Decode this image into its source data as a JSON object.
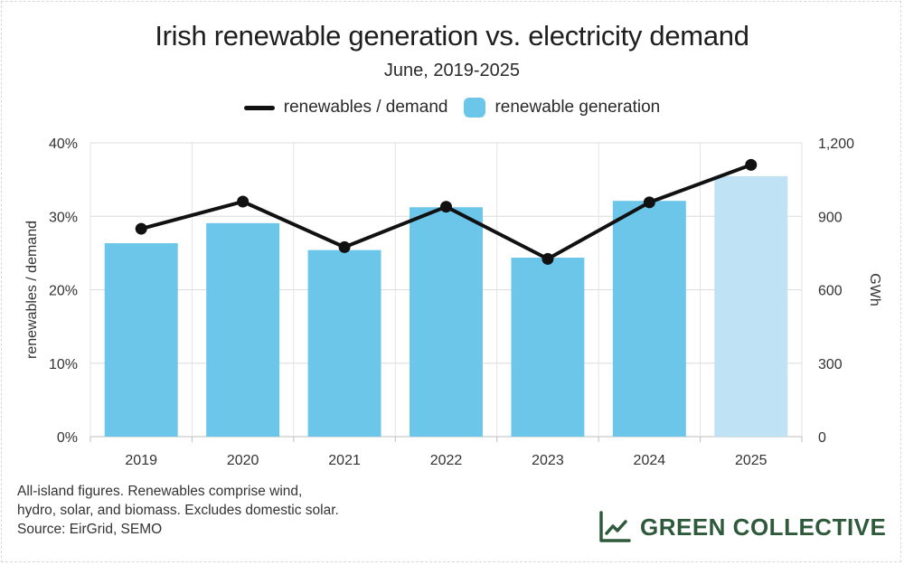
{
  "header": {
    "title": "Irish renewable generation vs. electricity demand",
    "subtitle": "June, 2019-2025"
  },
  "legend": {
    "line_label": "renewables / demand",
    "bar_label": "renewable generation"
  },
  "footnote": {
    "lines": [
      "All-island figures. Renewables comprise wind,",
      "hydro, solar, and biomass. Excludes domestic solar.",
      "Source: EirGrid, SEMO"
    ]
  },
  "brand": {
    "name": "GREEN COLLECTIVE"
  },
  "colors": {
    "bar": "#6cc6ea",
    "bar_projected": "#bfe3f5",
    "line": "#111111",
    "brand": "#2e5a3b"
  },
  "chart_data": {
    "type": "bar+line",
    "categories": [
      "2019",
      "2020",
      "2021",
      "2022",
      "2023",
      "2024",
      "2025"
    ],
    "series": [
      {
        "name": "renewable generation",
        "type": "bar",
        "axis": "right",
        "values": [
          790,
          872,
          762,
          937,
          731,
          963,
          1064
        ],
        "projected_index": 6
      },
      {
        "name": "renewables / demand",
        "type": "line",
        "axis": "left",
        "values": [
          28.3,
          32.0,
          25.8,
          31.3,
          24.2,
          31.9,
          37.0
        ]
      }
    ],
    "y_left": {
      "label": "renewables / demand",
      "ylim": [
        0,
        40
      ],
      "ticks": [
        0,
        10,
        20,
        30,
        40
      ],
      "tick_labels": [
        "0%",
        "10%",
        "20%",
        "30%",
        "40%"
      ]
    },
    "y_right": {
      "label": "GWh",
      "ylim": [
        0,
        1200
      ],
      "ticks": [
        0,
        300,
        600,
        900,
        1200
      ],
      "tick_labels": [
        "0",
        "300",
        "600",
        "900",
        "1,200"
      ]
    },
    "grid": true,
    "legend_position": "top-center"
  }
}
